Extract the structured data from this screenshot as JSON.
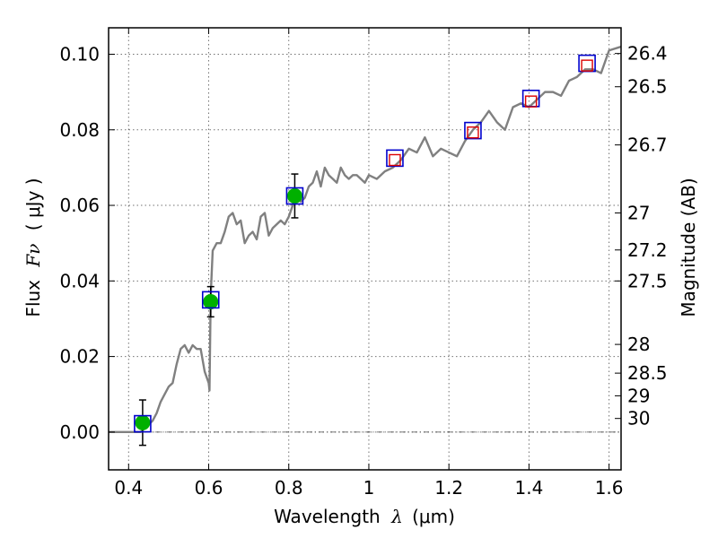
{
  "chart_data": {
    "type": "scatter",
    "xlabel": "Wavelength",
    "xlabel_symbol": "λ",
    "xlabel_unit": "(μm)",
    "ylabel": "Flux",
    "ylabel_symbol": "Fν",
    "ylabel_unit": "( μJy )",
    "y2label": "Magnitude (AB)",
    "xlim": [
      0.35,
      1.63
    ],
    "ylim": [
      -0.01,
      0.107
    ],
    "grid": true,
    "x_ticks": [
      {
        "value": 0.4,
        "label": "0.4"
      },
      {
        "value": 0.6,
        "label": "0.6"
      },
      {
        "value": 0.8,
        "label": "0.8"
      },
      {
        "value": 1.0,
        "label": "1"
      },
      {
        "value": 1.2,
        "label": "1.2"
      },
      {
        "value": 1.4,
        "label": "1.4"
      },
      {
        "value": 1.6,
        "label": "1.6"
      }
    ],
    "y_ticks": [
      {
        "value": 0.0,
        "label": "0.00"
      },
      {
        "value": 0.02,
        "label": "0.02"
      },
      {
        "value": 0.04,
        "label": "0.04"
      },
      {
        "value": 0.06,
        "label": "0.06"
      },
      {
        "value": 0.08,
        "label": "0.08"
      },
      {
        "value": 0.1,
        "label": "0.10"
      }
    ],
    "y2_ticks": [
      {
        "flux": 0.1002,
        "label": "26.4"
      },
      {
        "flux": 0.0914,
        "label": "26.5"
      },
      {
        "flux": 0.076,
        "label": "26.7"
      },
      {
        "flux": 0.058,
        "label": "27"
      },
      {
        "flux": 0.0482,
        "label": "27.2"
      },
      {
        "flux": 0.04,
        "label": "27.5"
      },
      {
        "flux": 0.0232,
        "label": "28"
      },
      {
        "flux": 0.0156,
        "label": "28.5"
      },
      {
        "flux": 0.0096,
        "label": "29"
      },
      {
        "flux": 0.0036,
        "label": "30"
      }
    ],
    "reference_line_y": 0.0,
    "model_spectrum": {
      "color": "#808080",
      "x": [
        0.35,
        0.43,
        0.44,
        0.45,
        0.46,
        0.47,
        0.48,
        0.49,
        0.5,
        0.51,
        0.52,
        0.53,
        0.54,
        0.55,
        0.56,
        0.57,
        0.58,
        0.59,
        0.6,
        0.602,
        0.605,
        0.61,
        0.62,
        0.63,
        0.64,
        0.65,
        0.66,
        0.67,
        0.68,
        0.69,
        0.7,
        0.71,
        0.72,
        0.73,
        0.74,
        0.75,
        0.76,
        0.77,
        0.78,
        0.79,
        0.8,
        0.81,
        0.82,
        0.83,
        0.84,
        0.85,
        0.86,
        0.87,
        0.88,
        0.89,
        0.9,
        0.91,
        0.92,
        0.93,
        0.94,
        0.95,
        0.96,
        0.97,
        0.98,
        0.99,
        1.0,
        1.02,
        1.04,
        1.06,
        1.08,
        1.1,
        1.12,
        1.14,
        1.16,
        1.18,
        1.2,
        1.22,
        1.24,
        1.26,
        1.28,
        1.3,
        1.32,
        1.34,
        1.36,
        1.38,
        1.4,
        1.42,
        1.44,
        1.46,
        1.48,
        1.5,
        1.52,
        1.54,
        1.56,
        1.58,
        1.6,
        1.63
      ],
      "y": [
        0.0,
        0.0,
        0.001,
        0.002,
        0.003,
        0.005,
        0.008,
        0.01,
        0.012,
        0.013,
        0.018,
        0.022,
        0.023,
        0.021,
        0.023,
        0.022,
        0.022,
        0.016,
        0.013,
        0.011,
        0.036,
        0.048,
        0.05,
        0.05,
        0.053,
        0.057,
        0.058,
        0.055,
        0.056,
        0.05,
        0.052,
        0.053,
        0.051,
        0.057,
        0.058,
        0.052,
        0.054,
        0.055,
        0.056,
        0.055,
        0.057,
        0.06,
        0.063,
        0.061,
        0.062,
        0.065,
        0.066,
        0.069,
        0.065,
        0.07,
        0.068,
        0.067,
        0.066,
        0.07,
        0.068,
        0.067,
        0.068,
        0.068,
        0.067,
        0.066,
        0.068,
        0.067,
        0.069,
        0.07,
        0.072,
        0.075,
        0.074,
        0.078,
        0.073,
        0.075,
        0.074,
        0.073,
        0.077,
        0.08,
        0.082,
        0.085,
        0.082,
        0.08,
        0.086,
        0.087,
        0.086,
        0.088,
        0.09,
        0.09,
        0.089,
        0.093,
        0.094,
        0.096,
        0.096,
        0.095,
        0.101,
        0.102
      ]
    },
    "series": [
      {
        "type": "filled_circle_with_errorbar",
        "color": "#00b000",
        "x": [
          0.435,
          0.605,
          0.815
        ],
        "y": [
          0.0025,
          0.0345,
          0.0625
        ],
        "yerr": [
          0.006,
          0.004,
          0.0058
        ]
      },
      {
        "type": "open_square_blue",
        "color": "#0000cc",
        "x": [
          0.435,
          0.605,
          0.815,
          1.065,
          1.26,
          1.405,
          1.545
        ],
        "y": [
          0.0022,
          0.035,
          0.0625,
          0.0725,
          0.0798,
          0.0883,
          0.0976
        ]
      },
      {
        "type": "open_square_red",
        "color": "#dd0000",
        "x": [
          1.065,
          1.26,
          1.405,
          1.545
        ],
        "y": [
          0.072,
          0.0793,
          0.0875,
          0.097
        ]
      }
    ]
  }
}
